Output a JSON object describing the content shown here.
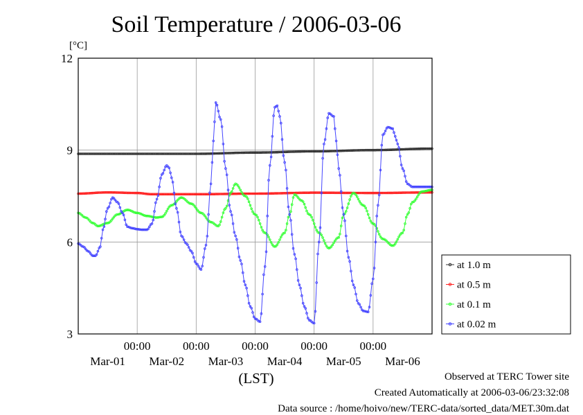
{
  "colors": {
    "at_1_0m": "#333333",
    "at_0_5m": "#ff2020",
    "at_0_1m": "#33ff33",
    "at_0_02m": "#4444ff",
    "grid": "#999999",
    "frame": "#000000"
  },
  "footer": {
    "observed": "Observed at TERC Tower site",
    "created": "Created Automatically at 2006-03-06/23:32:08",
    "source": "Data source : /home/hoivo/new/TERC-data/sorted_data/MET.30m.dat"
  },
  "chart_data": {
    "type": "line",
    "title": "Soil Temperature / 2006-03-06",
    "ylabel": "[°C]",
    "xlabel": "(LST)",
    "ylim": [
      3,
      12
    ],
    "yticks": [
      "3",
      "6",
      "9",
      "12"
    ],
    "xlim": [
      0,
      144
    ],
    "xtick_hours": [
      24,
      48,
      72,
      96,
      120
    ],
    "xtick_time_labels": [
      "00:00",
      "00:00",
      "00:00",
      "00:00",
      "00:00"
    ],
    "xtick_date_labels": [
      "Mar-01",
      "Mar-02",
      "Mar-03",
      "Mar-04",
      "Mar-05",
      "Mar-06"
    ],
    "x_units": "hours since 2006-02-28 12:00 LST",
    "grid": true,
    "legend_position": "right",
    "series": [
      {
        "name": "at 1.0 m",
        "color_key": "at_1_0m",
        "x": [
          0,
          24,
          48,
          72,
          96,
          120,
          144
        ],
        "y": [
          8.88,
          8.88,
          8.88,
          8.92,
          8.96,
          9.0,
          9.05
        ]
      },
      {
        "name": "at 0.5 m",
        "color_key": "at_0_5m",
        "x": [
          0,
          12,
          24,
          30,
          48,
          72,
          96,
          120,
          144
        ],
        "y": [
          7.58,
          7.62,
          7.6,
          7.56,
          7.56,
          7.58,
          7.61,
          7.6,
          7.62
        ]
      },
      {
        "name": "at 0.1 m",
        "color_key": "at_0_1m",
        "x": [
          0,
          3,
          6,
          8,
          12,
          16,
          20,
          24,
          28,
          32,
          34,
          38,
          42,
          46,
          50,
          54,
          57,
          60,
          62,
          64,
          68,
          72,
          76,
          80,
          84,
          86,
          88,
          91,
          94,
          98,
          102,
          106,
          108,
          112,
          116,
          120,
          124,
          128,
          132,
          134,
          136,
          140,
          144
        ],
        "y": [
          6.95,
          6.8,
          6.62,
          6.52,
          6.62,
          6.9,
          7.05,
          6.95,
          6.85,
          6.8,
          6.82,
          7.2,
          7.45,
          7.25,
          6.95,
          6.65,
          6.52,
          7.1,
          7.6,
          7.9,
          7.5,
          6.9,
          6.3,
          5.85,
          6.3,
          6.9,
          7.55,
          7.35,
          6.9,
          6.3,
          5.8,
          6.15,
          6.9,
          7.6,
          7.2,
          6.6,
          6.1,
          5.88,
          6.3,
          6.9,
          7.3,
          7.65,
          7.7
        ]
      },
      {
        "name": "at 0.02 m",
        "color_key": "at_0_02m",
        "x": [
          0,
          2,
          4,
          6,
          7,
          9,
          10,
          12,
          14,
          16,
          18,
          20,
          22,
          24,
          26,
          28,
          30,
          32,
          34,
          36,
          37,
          38,
          40,
          42,
          44,
          46,
          48,
          50,
          52,
          54,
          55,
          56,
          58,
          60,
          62,
          64,
          66,
          68,
          70,
          72,
          74,
          76,
          78,
          80,
          81,
          82,
          84,
          86,
          88,
          90,
          92,
          94,
          96,
          98,
          100,
          102,
          104,
          105,
          106,
          108,
          110,
          112,
          114,
          116,
          118,
          120,
          122,
          124,
          126,
          128,
          129,
          130,
          132,
          134,
          136,
          138,
          140,
          142,
          144
        ],
        "y": [
          5.95,
          5.85,
          5.7,
          5.55,
          5.55,
          5.85,
          6.4,
          7.1,
          7.45,
          7.3,
          6.95,
          6.5,
          6.45,
          6.42,
          6.4,
          6.4,
          6.6,
          7.4,
          8.2,
          8.5,
          8.42,
          8.1,
          7.1,
          6.2,
          5.95,
          5.7,
          5.3,
          5.1,
          5.9,
          7.9,
          9.3,
          10.55,
          10.0,
          8.4,
          7.0,
          6.2,
          5.4,
          4.6,
          3.9,
          3.5,
          3.4,
          5.2,
          8.5,
          10.4,
          10.45,
          10.1,
          8.6,
          6.9,
          5.6,
          4.6,
          3.9,
          3.45,
          3.35,
          6.0,
          9.2,
          10.2,
          10.1,
          9.3,
          8.4,
          6.9,
          5.5,
          4.6,
          4.0,
          3.75,
          3.72,
          4.8,
          7.2,
          9.5,
          9.75,
          9.7,
          9.45,
          9.2,
          8.4,
          7.9,
          7.8,
          7.8,
          7.8,
          7.8,
          7.8
        ]
      }
    ]
  }
}
